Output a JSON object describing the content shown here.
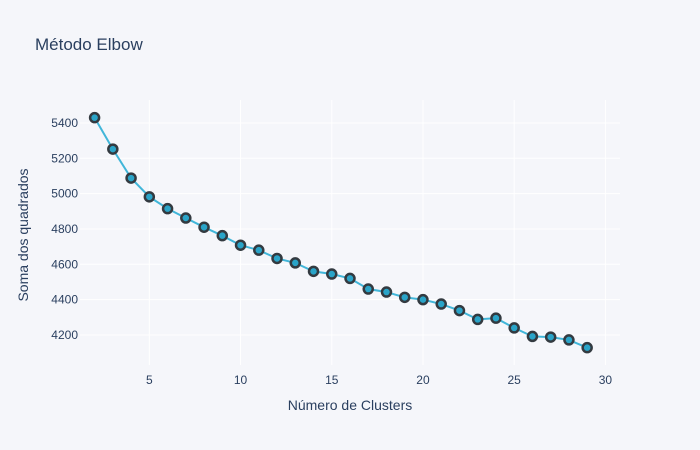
{
  "chart_data": {
    "type": "line",
    "title": "Método Elbow",
    "xlabel": "Número de Clusters",
    "ylabel": "Soma dos quadrados",
    "xlim": [
      1.2,
      30.8
    ],
    "ylim": [
      4030,
      5530
    ],
    "xticks": [
      5,
      10,
      15,
      20,
      25,
      30
    ],
    "yticks": [
      4200,
      4400,
      4600,
      4800,
      5000,
      5200,
      5400
    ],
    "grid": true,
    "legend": "none",
    "series": [
      {
        "x": [
          2,
          3,
          4,
          5,
          6,
          7,
          8,
          9,
          10,
          11,
          12,
          13,
          14,
          15,
          16,
          17,
          18,
          19,
          20,
          21,
          22,
          23,
          24,
          25,
          26,
          27,
          28,
          29
        ],
        "values": [
          5430,
          5252,
          5088,
          4982,
          4915,
          4862,
          4810,
          4762,
          4708,
          4680,
          4633,
          4608,
          4560,
          4545,
          4520,
          4460,
          4443,
          4413,
          4400,
          4375,
          4338,
          4288,
          4295,
          4240,
          4192,
          4188,
          4172,
          4128
        ],
        "line_color": "#41b6d9",
        "marker_fill": "#2aa4c8",
        "marker_edge": "#333a40"
      }
    ]
  }
}
